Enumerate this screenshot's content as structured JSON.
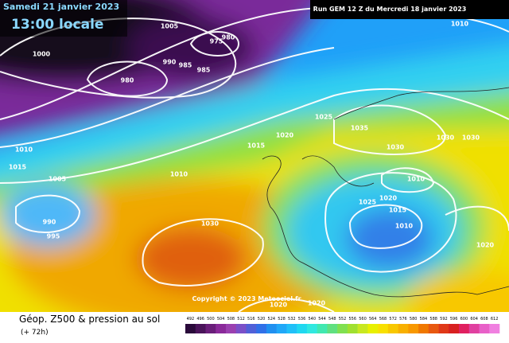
{
  "header": {
    "date": "Samedi 21 janvier 2023",
    "time": "13:00 locale",
    "run": "Run GEM 12 Z du Mercredi 18 janvier 2023"
  },
  "copyright": "Copyright © 2023 Meteociel.fr",
  "footer": {
    "title": "Géop. Z500 & pression au sol",
    "lead": "(+ 72h)"
  },
  "isobar_labels": [
    "1005",
    "975",
    "980",
    "990",
    "985",
    "985",
    "980",
    "1000",
    "1010",
    "1015",
    "1005",
    "1010",
    "1015",
    "1020",
    "1025",
    "1035",
    "1030",
    "1030",
    "1030",
    "1010",
    "990",
    "995",
    "1030",
    "1010",
    "1020",
    "1025",
    "1015",
    "1010",
    "1020",
    "1020",
    "1020"
  ],
  "colorbar": {
    "ticks": [
      "492",
      "496",
      "500",
      "504",
      "508",
      "512",
      "516",
      "520",
      "524",
      "528",
      "532",
      "536",
      "540",
      "544",
      "548",
      "552",
      "556",
      "560",
      "564",
      "568",
      "572",
      "576",
      "580",
      "584",
      "588",
      "592",
      "596",
      "600",
      "604",
      "608",
      "612"
    ],
    "colors": [
      "#2a0a3a",
      "#4a145a",
      "#6a1e7a",
      "#8a2a9a",
      "#9a40b0",
      "#7a50c8",
      "#5060d8",
      "#3070e8",
      "#2090f0",
      "#20a8f8",
      "#20c0f8",
      "#20d8f0",
      "#30e8e0",
      "#40e8b0",
      "#60e080",
      "#80e050",
      "#a0e030",
      "#c8e820",
      "#e8f000",
      "#f8e000",
      "#f8c800",
      "#f8b000",
      "#f89800",
      "#f07800",
      "#e85810",
      "#e03818",
      "#d82020",
      "#e02060",
      "#e040a0",
      "#e860c8",
      "#f080e0"
    ]
  }
}
